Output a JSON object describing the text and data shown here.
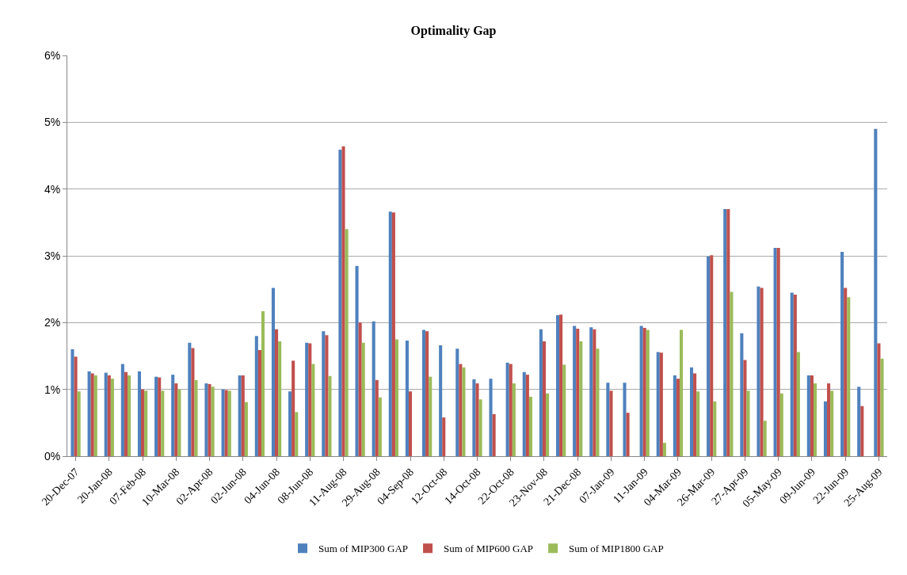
{
  "chart_data": {
    "type": "bar",
    "title": "Optimality Gap",
    "categories": [
      "20-Dec-07",
      null,
      "20-Jan-08",
      null,
      "07-Feb-08",
      null,
      "10-Mar-08",
      null,
      "02-Apr-08",
      null,
      "02-Jun-08",
      null,
      "04-Jun-08",
      null,
      "08-Jun-08",
      null,
      "11-Aug-08",
      null,
      "29-Aug-08",
      null,
      "04-Sep-08",
      null,
      "12-Oct-08",
      null,
      "14-Oct-08",
      null,
      "22-Oct-08",
      null,
      "23-Nov-08",
      null,
      "21-Dec-08",
      null,
      "07-Jan-09",
      null,
      "11-Jan-09",
      null,
      "04-Mar-09",
      null,
      "26-Mar-09",
      null,
      "27-Apr-09",
      null,
      "05-May-09",
      null,
      "09-Jun-09",
      null,
      "22-Jun-09",
      null,
      "25-Aug-09"
    ],
    "series": [
      {
        "name": "Sum of MIP300 GAP",
        "color": "#4f81bd",
        "values": [
          1.6,
          1.27,
          1.25,
          1.38,
          1.27,
          1.19,
          1.22,
          1.7,
          1.09,
          1.0,
          1.21,
          1.8,
          2.52,
          0.97,
          1.7,
          1.87,
          4.59,
          2.85,
          2.02,
          3.66,
          1.73,
          1.89,
          1.66,
          1.61,
          1.15,
          1.16,
          1.4,
          1.26,
          1.9,
          2.11,
          1.95,
          1.93,
          1.1,
          1.1,
          1.95,
          1.56,
          1.21,
          1.33,
          2.99,
          3.7,
          1.84,
          2.54,
          3.12,
          2.45,
          1.21,
          0.82,
          3.06,
          1.04,
          4.9
        ]
      },
      {
        "name": "Sum of MIP600 GAP",
        "color": "#c0504d",
        "values": [
          1.49,
          1.24,
          1.21,
          1.26,
          1.0,
          1.18,
          1.09,
          1.62,
          1.08,
          0.99,
          1.21,
          1.59,
          1.9,
          1.43,
          1.69,
          1.81,
          4.64,
          2.0,
          1.14,
          3.65,
          0.97,
          1.87,
          0.58,
          1.38,
          1.09,
          0.63,
          1.38,
          1.22,
          1.72,
          2.12,
          1.91,
          1.9,
          0.98,
          0.65,
          1.92,
          1.55,
          1.16,
          1.24,
          3.01,
          3.7,
          1.44,
          2.52,
          3.12,
          2.42,
          1.21,
          1.09,
          2.52,
          0.75,
          1.69
        ]
      },
      {
        "name": "Sum of MIP1800 GAP",
        "color": "#9bbb59",
        "values": [
          0.97,
          1.21,
          1.16,
          1.21,
          0.98,
          0.98,
          1.0,
          1.14,
          1.04,
          0.98,
          0.81,
          2.17,
          1.72,
          0.66,
          1.38,
          1.2,
          3.4,
          1.7,
          0.88,
          1.75,
          null,
          1.19,
          null,
          1.33,
          0.85,
          null,
          1.09,
          0.89,
          0.94,
          1.37,
          1.72,
          1.61,
          null,
          null,
          1.89,
          0.2,
          1.89,
          0.97,
          0.82,
          2.46,
          0.98,
          0.53,
          0.94,
          1.56,
          1.09,
          0.98,
          2.38,
          null,
          1.46
        ]
      }
    ],
    "ylim": [
      0,
      6
    ],
    "yticks": [
      {
        "value": 0,
        "label": "0%"
      },
      {
        "value": 1,
        "label": "1%"
      },
      {
        "value": 2,
        "label": "2%"
      },
      {
        "value": 3,
        "label": "3%"
      },
      {
        "value": 4,
        "label": "4%"
      },
      {
        "value": 5,
        "label": "5%"
      },
      {
        "value": 6,
        "label": "6%"
      }
    ],
    "grid": "y",
    "legend": "bottom"
  }
}
